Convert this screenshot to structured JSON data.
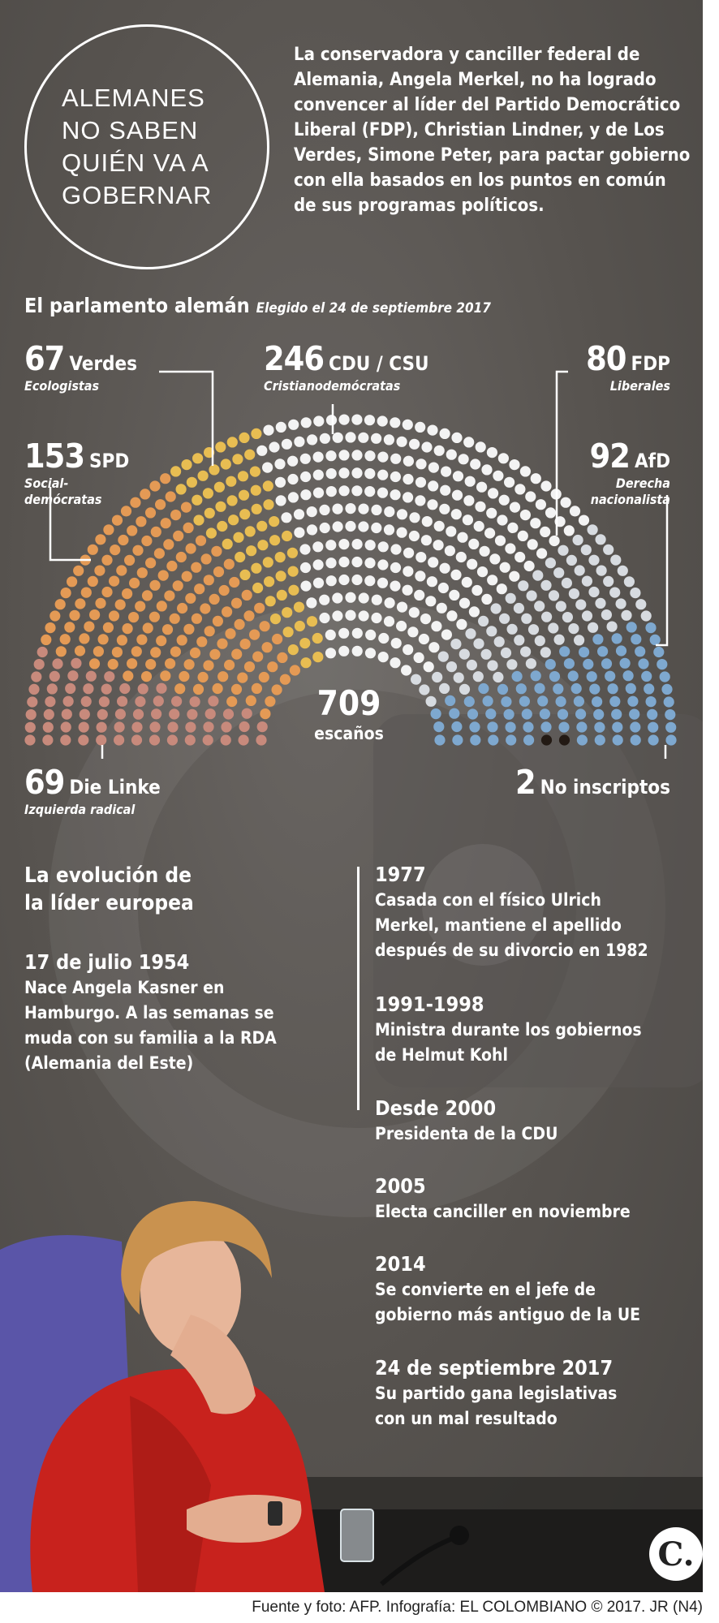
{
  "header": {
    "title": "ALEMANES\nNO SABEN\nQUIÉN VA A\nGOBERNAR",
    "intro": "La conservadora y canciller federal de Alemania, Angela Merkel, no ha logrado convencer al líder del Partido Democrático Liberal (FDP), Christian Lindner, y de Los Verdes, Simone Peter, para pactar gobierno con ella basados en los puntos en común de sus programas políticos."
  },
  "chart_data": {
    "type": "parliament",
    "title": "El parlamento alemán",
    "subtitle": "Elegido el 24 de septiembre 2017",
    "total": 709,
    "total_label": "escaños",
    "parties": [
      {
        "name": "Die Linke",
        "seats": 69,
        "description": "Izquierda radical",
        "color": "#c88a7c"
      },
      {
        "name": "SPD",
        "seats": 153,
        "description": "Social-\ndemócratas",
        "color": "#e49a55"
      },
      {
        "name": "Verdes",
        "seats": 67,
        "description": "Ecologistas",
        "color": "#e8bd52"
      },
      {
        "name": "CDU / CSU",
        "seats": 246,
        "description": "Cristianodemócratas",
        "color": "#f3f3f3"
      },
      {
        "name": "FDP",
        "seats": 80,
        "description": "Liberales",
        "color": "#d7dbe0"
      },
      {
        "name": "AfD",
        "seats": 92,
        "description": "Derecha\nnacionalista",
        "color": "#7ea8cf"
      },
      {
        "name": "No inscriptos",
        "seats": 2,
        "description": "",
        "color": "#231a14"
      }
    ]
  },
  "timeline": {
    "title": "La evolución de\nla líder europea",
    "events": [
      {
        "date": "17 de julio 1954",
        "text": "Nace Angela Kasner en\nHamburgo. A las semanas se\nmuda con su familia a la RDA\n(Alemania del Este)"
      },
      {
        "date": "1977",
        "text": "Casada con el físico Ulrich\nMerkel, mantiene el apellido\ndespués de su divorcio en 1982"
      },
      {
        "date": "1991-1998",
        "text": "Ministra durante los gobiernos\nde Helmut Kohl"
      },
      {
        "date": "Desde 2000",
        "text": "Presidenta de la CDU"
      },
      {
        "date": "2005",
        "text": "Electa canciller en noviembre"
      },
      {
        "date": "2014",
        "text": "Se convierte en el jefe de\ngobierno más antiguo de la UE"
      },
      {
        "date": "24 de septiembre 2017",
        "text": "Su partido gana legislativas\ncon un mal resultado"
      }
    ]
  },
  "logo": {
    "text": "C."
  },
  "footer": {
    "credit": "Fuente y foto: AFP. Infografía: EL COLOMBIANO © 2017. JR (N4)"
  }
}
